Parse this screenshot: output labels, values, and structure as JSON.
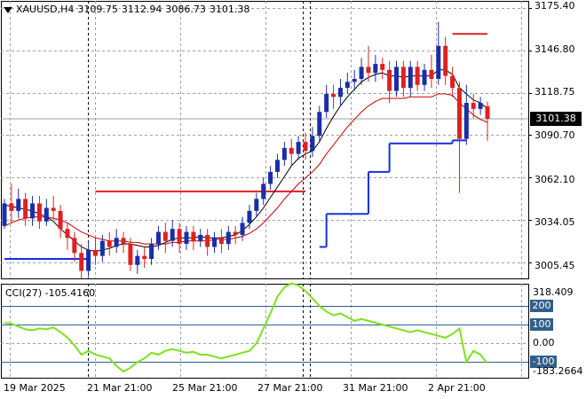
{
  "header": {
    "symbol": "XAUUSD,H4",
    "open": "3109.75",
    "high": "3112.94",
    "low": "3086.73",
    "close": "3101.38",
    "menu_icon": "triangle-down-icon"
  },
  "price_axis": {
    "ticks": [
      "3175.40",
      "3146.80",
      "3118.75",
      "3090.70",
      "3062.10",
      "3034.05",
      "3005.45"
    ],
    "current_price": "3101.38"
  },
  "cci": {
    "title": "CCI(27) -105.4160",
    "axis_top": "318.409",
    "level_200": "200",
    "level_100": "100",
    "level_0": "0.00",
    "level_m100": "-100",
    "axis_bottom": "-183.2664"
  },
  "time_axis": [
    "19 Mar 2025",
    "21 Mar 21:00",
    "25 Mar 21:00",
    "27 Mar 21:00",
    "31 Mar 21:00",
    "2 Apr 21:00"
  ],
  "colors": {
    "bull": "#1a2ea8",
    "bear": "#e02020",
    "ma_fast": "#000000",
    "ma_slow": "#cc0000",
    "stop_red": "#e02020",
    "stop_blue": "#1a2ee0",
    "cci_line": "#7fe21a",
    "grid": "#9aa0a6"
  },
  "chart_data": {
    "type": "candlestick",
    "candles": [
      [
        3030,
        3045,
        3028,
        3048
      ],
      [
        3045,
        3040,
        3032,
        3058
      ],
      [
        3040,
        3048,
        3035,
        3055
      ],
      [
        3048,
        3035,
        3030,
        3052
      ],
      [
        3035,
        3045,
        3030,
        3050
      ],
      [
        3045,
        3033,
        3028,
        3050
      ],
      [
        3033,
        3042,
        3030,
        3048
      ],
      [
        3042,
        3040,
        3034,
        3050
      ],
      [
        3040,
        3028,
        3022,
        3044
      ],
      [
        3028,
        3022,
        3014,
        3032
      ],
      [
        3022,
        3012,
        3006,
        3026
      ],
      [
        3012,
        3000,
        2995,
        3018
      ],
      [
        3000,
        3014,
        2996,
        3020
      ],
      [
        3014,
        3010,
        3004,
        3022
      ],
      [
        3010,
        3020,
        3006,
        3024
      ],
      [
        3020,
        3016,
        3010,
        3026
      ],
      [
        3016,
        3022,
        3012,
        3028
      ],
      [
        3022,
        3018,
        3012,
        3026
      ],
      [
        3018,
        3004,
        3000,
        3022
      ],
      [
        3004,
        3010,
        2998,
        3014
      ],
      [
        3010,
        3008,
        3002,
        3016
      ],
      [
        3008,
        3018,
        3004,
        3022
      ],
      [
        3018,
        3026,
        3014,
        3030
      ],
      [
        3026,
        3020,
        3012,
        3032
      ],
      [
        3020,
        3028,
        3016,
        3034
      ],
      [
        3028,
        3018,
        3012,
        3032
      ],
      [
        3018,
        3026,
        3014,
        3030
      ],
      [
        3026,
        3020,
        3014,
        3030
      ],
      [
        3020,
        3024,
        3016,
        3028
      ],
      [
        3024,
        3016,
        3010,
        3028
      ],
      [
        3016,
        3022,
        3012,
        3026
      ],
      [
        3022,
        3018,
        3012,
        3028
      ],
      [
        3018,
        3026,
        3014,
        3030
      ],
      [
        3026,
        3024,
        3018,
        3030
      ],
      [
        3024,
        3032,
        3020,
        3036
      ],
      [
        3032,
        3040,
        3028,
        3044
      ],
      [
        3040,
        3048,
        3036,
        3052
      ],
      [
        3048,
        3058,
        3044,
        3062
      ],
      [
        3058,
        3066,
        3054,
        3070
      ],
      [
        3066,
        3074,
        3062,
        3078
      ],
      [
        3074,
        3082,
        3070,
        3086
      ],
      [
        3082,
        3078,
        3070,
        3088
      ],
      [
        3078,
        3086,
        3074,
        3090
      ],
      [
        3086,
        3080,
        3074,
        3092
      ],
      [
        3080,
        3090,
        3076,
        3096
      ],
      [
        3090,
        3106,
        3086,
        3110
      ],
      [
        3106,
        3118,
        3102,
        3124
      ],
      [
        3118,
        3116,
        3108,
        3124
      ],
      [
        3116,
        3122,
        3110,
        3128
      ],
      [
        3122,
        3126,
        3118,
        3132
      ],
      [
        3126,
        3128,
        3120,
        3134
      ],
      [
        3128,
        3136,
        3124,
        3142
      ],
      [
        3136,
        3132,
        3126,
        3150
      ],
      [
        3132,
        3138,
        3126,
        3144
      ],
      [
        3138,
        3134,
        3128,
        3142
      ],
      [
        3134,
        3120,
        3112,
        3140
      ],
      [
        3120,
        3136,
        3116,
        3140
      ],
      [
        3136,
        3122,
        3116,
        3140
      ],
      [
        3122,
        3136,
        3116,
        3140
      ],
      [
        3136,
        3124,
        3120,
        3140
      ],
      [
        3124,
        3134,
        3120,
        3138
      ],
      [
        3134,
        3128,
        3122,
        3144
      ],
      [
        3128,
        3150,
        3124,
        3166
      ],
      [
        3150,
        3130,
        3124,
        3156
      ],
      [
        3130,
        3122,
        3116,
        3136
      ],
      [
        3122,
        3088,
        3052,
        3126
      ],
      [
        3088,
        3112,
        3084,
        3124
      ],
      [
        3112,
        3108,
        3102,
        3118
      ],
      [
        3108,
        3112,
        3104,
        3116
      ],
      [
        3109.75,
        3101.38,
        3086.73,
        3112.94
      ]
    ],
    "ma_fast": [
      3044,
      3043,
      3042,
      3041,
      3040,
      3038,
      3036,
      3033,
      3028,
      3024,
      3020,
      3016,
      3014,
      3013,
      3014,
      3015,
      3017,
      3018,
      3018,
      3017,
      3016,
      3016,
      3017,
      3019,
      3021,
      3022,
      3022,
      3022,
      3023,
      3022,
      3022,
      3022,
      3023,
      3024,
      3027,
      3031,
      3036,
      3042,
      3049,
      3056,
      3063,
      3070,
      3075,
      3078,
      3080,
      3086,
      3095,
      3103,
      3110,
      3116,
      3121,
      3126,
      3129,
      3131,
      3132,
      3130,
      3130,
      3129,
      3130,
      3130,
      3130,
      3130,
      3134,
      3134,
      3131,
      3122,
      3118,
      3114,
      3112,
      3108
    ],
    "ma_slow": [
      3030,
      3032,
      3034,
      3035,
      3036,
      3036,
      3036,
      3035,
      3034,
      3032,
      3029,
      3026,
      3024,
      3022,
      3021,
      3020,
      3020,
      3020,
      3019,
      3019,
      3018,
      3018,
      3018,
      3018,
      3019,
      3019,
      3020,
      3020,
      3020,
      3020,
      3021,
      3021,
      3021,
      3022,
      3023,
      3025,
      3028,
      3032,
      3037,
      3042,
      3048,
      3053,
      3058,
      3062,
      3066,
      3071,
      3078,
      3084,
      3090,
      3096,
      3101,
      3106,
      3110,
      3113,
      3115,
      3115,
      3115,
      3115,
      3116,
      3116,
      3116,
      3116,
      3118,
      3118,
      3117,
      3112,
      3108,
      3104,
      3101,
      3099
    ],
    "stop_red": [
      {
        "from": 13,
        "to": 43,
        "value": 3053
      },
      {
        "from": 64,
        "to": 69,
        "value": 3158
      }
    ],
    "stop_blue": [
      {
        "from": 0,
        "to": 12,
        "value": 3008
      },
      {
        "from": 45,
        "to": 46,
        "value": 3016
      },
      {
        "from": 46,
        "to": 52,
        "value": 3038
      },
      {
        "from": 52,
        "to": 55,
        "value": 3066
      },
      {
        "from": 55,
        "to": 64,
        "value": 3085
      },
      {
        "from": 64,
        "to": 66,
        "value": 3087
      }
    ],
    "cci_values": [
      110,
      105,
      90,
      75,
      70,
      80,
      75,
      85,
      60,
      30,
      -10,
      -60,
      -40,
      -60,
      -70,
      -80,
      -120,
      -150,
      -130,
      -100,
      -80,
      -50,
      -60,
      -40,
      -30,
      -40,
      -50,
      -45,
      -60,
      -60,
      -70,
      -80,
      -70,
      -60,
      -50,
      -40,
      0,
      80,
      160,
      250,
      300,
      320,
      310,
      280,
      240,
      200,
      170,
      150,
      160,
      140,
      120,
      130,
      120,
      110,
      100,
      90,
      80,
      70,
      60,
      70,
      60,
      50,
      40,
      30,
      50,
      80,
      -100,
      -40,
      -60,
      -105.416
    ],
    "ylim_price": [
      2995,
      3180
    ],
    "ylim_cci": [
      -183.2664,
      318.409
    ]
  }
}
